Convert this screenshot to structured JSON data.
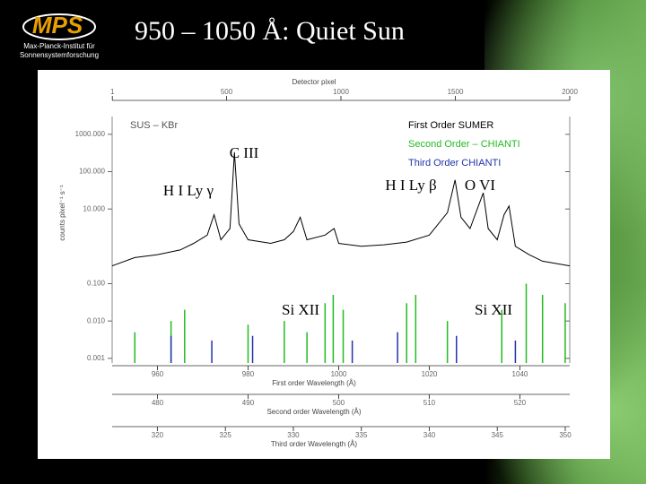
{
  "header": {
    "title": "950 – 1050 Å: Quiet Sun",
    "logo": "MPS",
    "institute_line1": "Max-Planck-Institut für",
    "institute_line2": "Sonnensystemforschung"
  },
  "chart_data": {
    "type": "line",
    "log_y": true,
    "top_axis_label": "Detector pixel",
    "x_top_lim": [
      0,
      2000
    ],
    "x_top_ticks": [
      1,
      500,
      1000,
      1500,
      2000
    ],
    "y_label": "counts pixel⁻¹ s⁻¹",
    "ylim": [
      0.00075,
      3000
    ],
    "yticks": [
      {
        "value": 1000,
        "label": "1000.000"
      },
      {
        "value": 100,
        "label": "100.000"
      },
      {
        "value": 10,
        "label": "10.000"
      },
      {
        "value": 0.1,
        "label": "0.100"
      },
      {
        "value": 0.01,
        "label": "0.010"
      },
      0.001
    ],
    "x_label": "First order   Wavelength (Å)",
    "xlim": [
      950,
      1051
    ],
    "xticks": [
      960,
      980,
      1000,
      1020,
      1040
    ],
    "x2_label": "Second order   Wavelength (Å)",
    "x2lim": [
      475,
      525.5
    ],
    "x2ticks": [
      480,
      490,
      500,
      510,
      520
    ],
    "x3_label": "Third order   Wavelength (Å)",
    "x3lim": [
      316.67,
      350.33
    ],
    "x3ticks": [
      320,
      325,
      330,
      335,
      340,
      345,
      350
    ],
    "instrument_label": "SUS – KBr",
    "annotations": [
      "C III",
      "H I Ly γ",
      "H I Ly β",
      "O VI",
      "Si XII",
      "Si XII"
    ],
    "series": [
      {
        "name": "First  Order   SUMER",
        "color": "#000000",
        "stick": false,
        "x": [
          950,
          955,
          960,
          965,
          968,
          971,
          972.5,
          974,
          976,
          977,
          978,
          980,
          985,
          988,
          990,
          991.5,
          993,
          997,
          999,
          1000,
          1005,
          1010,
          1015,
          1020,
          1024,
          1025.7,
          1027,
          1029,
          1031.9,
          1033,
          1035,
          1036.5,
          1037.6,
          1039,
          1042,
          1045,
          1051
        ],
        "values": [
          0.3,
          0.5,
          0.6,
          0.8,
          1.2,
          2,
          7,
          1.5,
          3,
          330,
          4,
          1.5,
          1.2,
          1.5,
          2.5,
          6,
          1.5,
          2,
          3,
          1.2,
          1,
          1.1,
          1.3,
          2,
          8,
          60,
          6,
          3,
          27,
          3,
          1.5,
          7,
          12,
          1,
          0.6,
          0.4,
          0.3
        ]
      },
      {
        "name": "Second  Order  –  CHIANTI",
        "color": "#22bb22",
        "stick": true,
        "x": [
          955,
          963,
          966,
          980,
          988,
          993,
          997,
          998.8,
          1001,
          1015,
          1017,
          1024,
          1036,
          1041.4,
          1045,
          1050
        ],
        "values": [
          0.005,
          0.01,
          0.02,
          0.008,
          0.01,
          0.005,
          0.03,
          0.05,
          0.02,
          0.03,
          0.05,
          0.01,
          0.02,
          0.1,
          0.05,
          0.03
        ]
      },
      {
        "name": "Third   Order   CHIANTI",
        "color": "#2233aa",
        "stick": true,
        "x": [
          963,
          972,
          981,
          1003,
          1013,
          1026,
          1039
        ],
        "values": [
          0.004,
          0.003,
          0.004,
          0.003,
          0.005,
          0.004,
          0.003
        ]
      }
    ]
  }
}
